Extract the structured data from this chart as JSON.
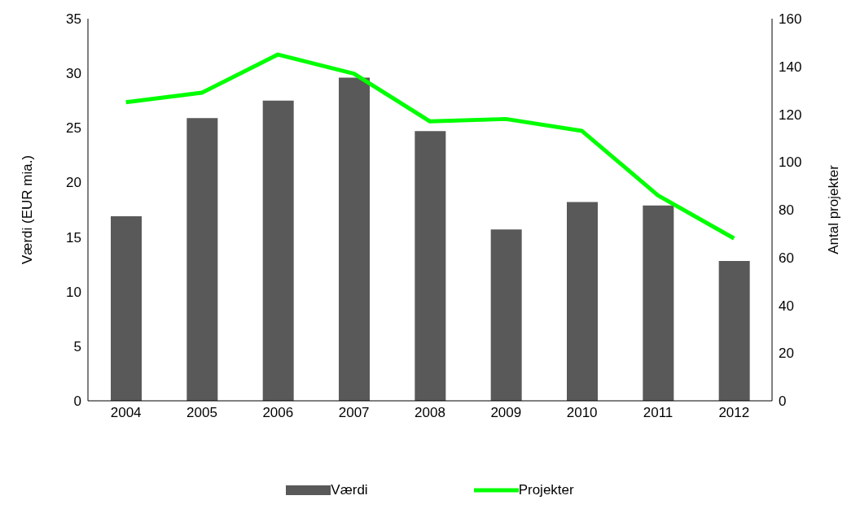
{
  "chart_data": {
    "type": "bar",
    "ylabel": "Værdi (EUR mia.)",
    "y2label": "Antal projekter",
    "categories": [
      "2004",
      "2005",
      "2006",
      "2007",
      "2008",
      "2009",
      "2010",
      "2011",
      "2012"
    ],
    "series": [
      {
        "name": "Værdi",
        "color": "#595959",
        "values": [
          16.9,
          25.9,
          27.5,
          29.6,
          24.7,
          15.7,
          18.2,
          17.9,
          12.8
        ]
      },
      {
        "name": "Projekter",
        "type": "line",
        "axis": "y2",
        "color": "#00ff00",
        "values": [
          125,
          129,
          145,
          137,
          117,
          118,
          113,
          86,
          68
        ]
      }
    ],
    "ylim": [
      0,
      35
    ],
    "yticks": [
      0,
      5,
      10,
      15,
      20,
      25,
      30,
      35
    ],
    "y2lim": [
      0,
      160
    ],
    "y2ticks": [
      0,
      20,
      40,
      60,
      80,
      100,
      120,
      140,
      160
    ],
    "grid": false,
    "legend": "bottom",
    "marker": "none",
    "line_style": "solid"
  }
}
